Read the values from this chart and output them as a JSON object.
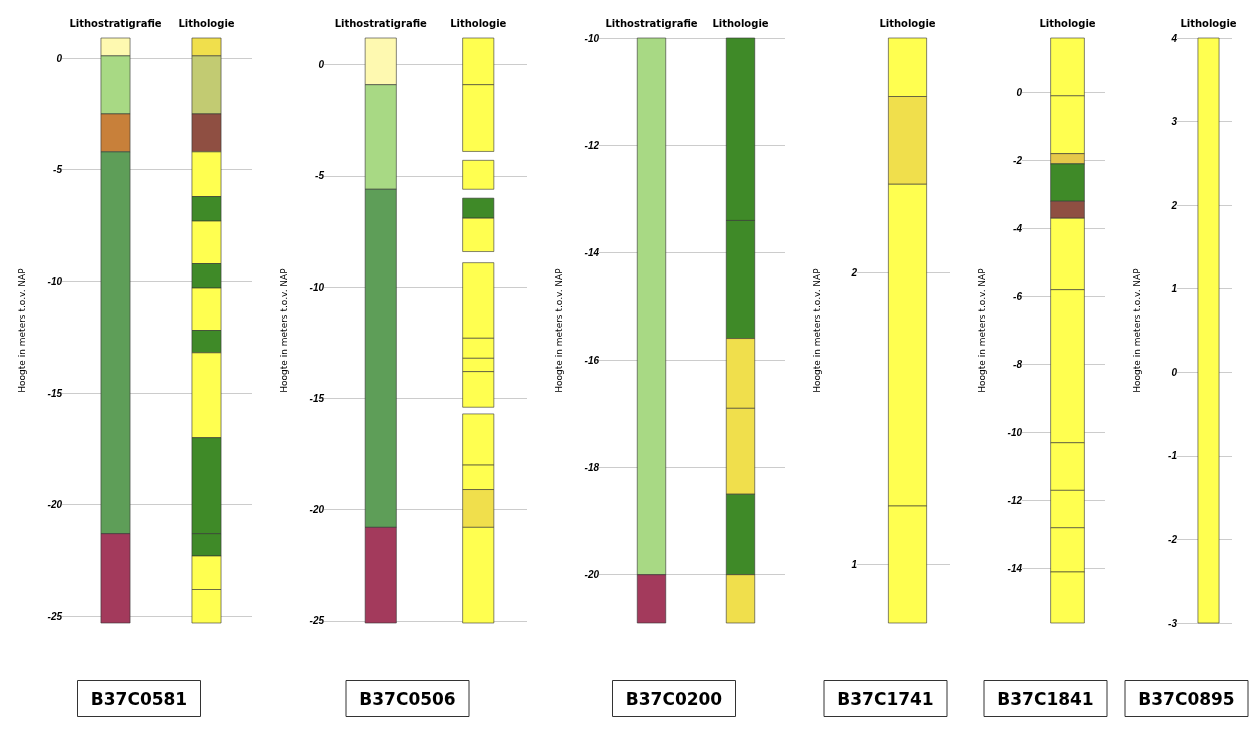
{
  "chart_data": [
    {
      "type": "bar",
      "title": "B37C0581",
      "ylabel": "Hoogte in meters t.o.v. NAP",
      "categories": [
        "Lithostratigrafie",
        "Lithologie"
      ],
      "ylim": [
        -25.3,
        0.9
      ],
      "yticks": [
        0,
        -5,
        -10,
        -15,
        -20,
        -25
      ],
      "grid": "y",
      "series": [
        {
          "color": "#fef9b0",
          "base": [
            0.1,
            null
          ],
          "values": [
            0.8,
            null
          ]
        },
        {
          "color": "#a8d984",
          "base": [
            -2.5,
            null
          ],
          "values": [
            2.6,
            null
          ]
        },
        {
          "color": "#c8803a",
          "base": [
            -4.2,
            null
          ],
          "values": [
            1.7,
            null
          ]
        },
        {
          "color": "#5e9e58",
          "base": [
            -21.3,
            null
          ],
          "values": [
            17.1,
            null
          ]
        },
        {
          "color": "#a33a5c",
          "base": [
            -25.3,
            null
          ],
          "values": [
            4.0,
            null
          ]
        },
        {
          "color": "#f0df4c",
          "base": [
            null,
            0.1
          ],
          "values": [
            null,
            0.8
          ]
        },
        {
          "color": "#c2cb72",
          "base": [
            null,
            -2.5
          ],
          "values": [
            null,
            2.6
          ]
        },
        {
          "color": "#8f4f42",
          "base": [
            null,
            -4.2
          ],
          "values": [
            null,
            1.7
          ]
        },
        {
          "color": "#ffff50",
          "base": [
            null,
            -6.2
          ],
          "values": [
            null,
            2.0
          ]
        },
        {
          "color": "#3f8a28",
          "base": [
            null,
            -7.3
          ],
          "values": [
            null,
            1.1
          ]
        },
        {
          "color": "#ffff50",
          "base": [
            null,
            -9.2
          ],
          "values": [
            null,
            1.9
          ]
        },
        {
          "color": "#3f8a28",
          "base": [
            null,
            -10.3
          ],
          "values": [
            null,
            1.1
          ]
        },
        {
          "color": "#ffff50",
          "base": [
            null,
            -12.2
          ],
          "values": [
            null,
            1.9
          ]
        },
        {
          "color": "#3f8a28",
          "base": [
            null,
            -13.2
          ],
          "values": [
            null,
            1.0
          ]
        },
        {
          "color": "#ffff50",
          "base": [
            null,
            -17.0
          ],
          "values": [
            null,
            3.8
          ]
        },
        {
          "color": "#3f8a28",
          "base": [
            null,
            -21.3
          ],
          "values": [
            null,
            4.3
          ]
        },
        {
          "color": "#3f8a28",
          "base": [
            null,
            -22.3
          ],
          "values": [
            null,
            1.0
          ]
        },
        {
          "color": "#ffff50",
          "base": [
            null,
            -23.8
          ],
          "values": [
            null,
            1.5
          ]
        },
        {
          "color": "#ffff50",
          "base": [
            null,
            -25.3
          ],
          "values": [
            null,
            1.5
          ]
        }
      ]
    },
    {
      "type": "bar",
      "title": "B37C0506",
      "ylabel": "Hoogte in meters t.o.v. NAP",
      "categories": [
        "Lithostratigrafie",
        "Lithologie"
      ],
      "ylim": [
        -25.1,
        1.2
      ],
      "yticks": [
        0,
        -5,
        -10,
        -15,
        -20,
        -25
      ],
      "grid": "y",
      "series": [
        {
          "color": "#fef9b0",
          "base": [
            -0.9,
            null
          ],
          "values": [
            2.1,
            null
          ]
        },
        {
          "color": "#a8d984",
          "base": [
            -5.6,
            null
          ],
          "values": [
            4.7,
            null
          ]
        },
        {
          "color": "#5e9e58",
          "base": [
            -20.8,
            null
          ],
          "values": [
            15.2,
            null
          ]
        },
        {
          "color": "#a33a5c",
          "base": [
            -25.1,
            null
          ],
          "values": [
            4.3,
            null
          ]
        },
        {
          "color": "#ffff50",
          "base": [
            null,
            -0.9
          ],
          "values": [
            null,
            2.1
          ]
        },
        {
          "color": "#ffff50",
          "base": [
            null,
            -3.9
          ],
          "values": [
            null,
            3.0
          ]
        },
        {
          "color": "#ffff50",
          "base": [
            null,
            -5.6
          ],
          "values": [
            null,
            1.3
          ]
        },
        {
          "color": "#3f8a28",
          "base": [
            null,
            -6.9
          ],
          "values": [
            null,
            0.9
          ]
        },
        {
          "color": "#ffff50",
          "base": [
            null,
            -8.4
          ],
          "values": [
            null,
            1.5
          ]
        },
        {
          "color": "#ffff50",
          "base": [
            null,
            -12.3
          ],
          "values": [
            null,
            3.4
          ]
        },
        {
          "color": "#ffff50",
          "base": [
            null,
            -13.2
          ],
          "values": [
            null,
            0.9
          ]
        },
        {
          "color": "#ffff50",
          "base": [
            null,
            -13.8
          ],
          "values": [
            null,
            0.6
          ]
        },
        {
          "color": "#ffff50",
          "base": [
            null,
            -15.4
          ],
          "values": [
            null,
            1.6
          ]
        },
        {
          "color": "#ffff50",
          "base": [
            null,
            -18.0
          ],
          "values": [
            null,
            2.3
          ]
        },
        {
          "color": "#ffff50",
          "base": [
            null,
            -19.1
          ],
          "values": [
            null,
            1.1
          ]
        },
        {
          "color": "#f0df4c",
          "base": [
            null,
            -20.8
          ],
          "values": [
            null,
            1.7
          ]
        },
        {
          "color": "#ffff50",
          "base": [
            null,
            -25.1
          ],
          "values": [
            null,
            4.3
          ]
        }
      ]
    },
    {
      "type": "bar",
      "title": "B37C0200",
      "ylabel": "Hoogte in meters t.o.v. NAP",
      "categories": [
        "Lithostratigrafie",
        "Lithologie"
      ],
      "ylim": [
        -20.9,
        -10
      ],
      "yticks": [
        -10,
        -12,
        -14,
        -16,
        -18,
        -20
      ],
      "grid": "y",
      "series": [
        {
          "color": "#a8d984",
          "base": [
            -20.0,
            null
          ],
          "values": [
            10.0,
            null
          ]
        },
        {
          "color": "#a33a5c",
          "base": [
            -20.9,
            null
          ],
          "values": [
            0.9,
            null
          ]
        },
        {
          "color": "#3f8a28",
          "base": [
            null,
            -13.4
          ],
          "values": [
            null,
            3.4
          ]
        },
        {
          "color": "#3f8a28",
          "base": [
            null,
            -15.6
          ],
          "values": [
            null,
            2.2
          ]
        },
        {
          "color": "#f0df4c",
          "base": [
            null,
            -16.9
          ],
          "values": [
            null,
            1.3
          ]
        },
        {
          "color": "#f0df4c",
          "base": [
            null,
            -18.5
          ],
          "values": [
            null,
            1.6
          ]
        },
        {
          "color": "#3f8a28",
          "base": [
            null,
            -20.0
          ],
          "values": [
            null,
            1.5
          ]
        },
        {
          "color": "#f0df4c",
          "base": [
            null,
            -20.9
          ],
          "values": [
            null,
            0.9
          ]
        }
      ]
    },
    {
      "type": "bar",
      "title": "B37C1741",
      "ylabel": "Hoogte in meters t.o.v. NAP",
      "categories": [
        "Lithologie"
      ],
      "ylim": [
        0.8,
        2.8
      ],
      "yticks": [
        1,
        2
      ],
      "grid": "y",
      "series": [
        {
          "color": "#ffff50",
          "base": [
            2.6
          ],
          "values": [
            0.2
          ]
        },
        {
          "color": "#f0df4c",
          "base": [
            2.3
          ],
          "values": [
            0.3
          ]
        },
        {
          "color": "#ffff50",
          "base": [
            1.2
          ],
          "values": [
            1.1
          ]
        },
        {
          "color": "#ffff50",
          "base": [
            0.8
          ],
          "values": [
            0.4
          ]
        }
      ]
    },
    {
      "type": "bar",
      "title": "B37C1841",
      "ylabel": "Hoogte in meters t.o.v. NAP",
      "categories": [
        "Lithologie"
      ],
      "ylim": [
        -15.6,
        1.6
      ],
      "yticks": [
        0,
        -2,
        -4,
        -6,
        -8,
        -10,
        -12,
        -14
      ],
      "grid": "y",
      "series": [
        {
          "color": "#ffff50",
          "base": [
            -0.1
          ],
          "values": [
            1.7
          ]
        },
        {
          "color": "#ffff50",
          "base": [
            -1.8
          ],
          "values": [
            1.7
          ]
        },
        {
          "color": "#e6c84a",
          "base": [
            -2.1
          ],
          "values": [
            0.3
          ]
        },
        {
          "color": "#3f8a28",
          "base": [
            -3.2
          ],
          "values": [
            1.1
          ]
        },
        {
          "color": "#8f4f42",
          "base": [
            -3.7
          ],
          "values": [
            0.5
          ]
        },
        {
          "color": "#ffff50",
          "base": [
            -5.8
          ],
          "values": [
            2.1
          ]
        },
        {
          "color": "#ffff50",
          "base": [
            -10.3
          ],
          "values": [
            4.5
          ]
        },
        {
          "color": "#ffff50",
          "base": [
            -11.7
          ],
          "values": [
            1.4
          ]
        },
        {
          "color": "#ffff50",
          "base": [
            -12.8
          ],
          "values": [
            1.1
          ]
        },
        {
          "color": "#ffff50",
          "base": [
            -14.1
          ],
          "values": [
            1.3
          ]
        },
        {
          "color": "#ffff50",
          "base": [
            -15.6
          ],
          "values": [
            1.5
          ]
        }
      ]
    },
    {
      "type": "bar",
      "title": "B37C0895",
      "ylabel": "Hoogte in meters t.o.v. NAP",
      "categories": [
        "Lithologie"
      ],
      "ylim": [
        -3,
        4
      ],
      "yticks": [
        4,
        3,
        2,
        1,
        0,
        -1,
        -2,
        -3
      ],
      "grid": "y",
      "series": [
        {
          "color": "#ffff50",
          "base": [
            -3
          ],
          "values": [
            7
          ]
        }
      ]
    }
  ]
}
